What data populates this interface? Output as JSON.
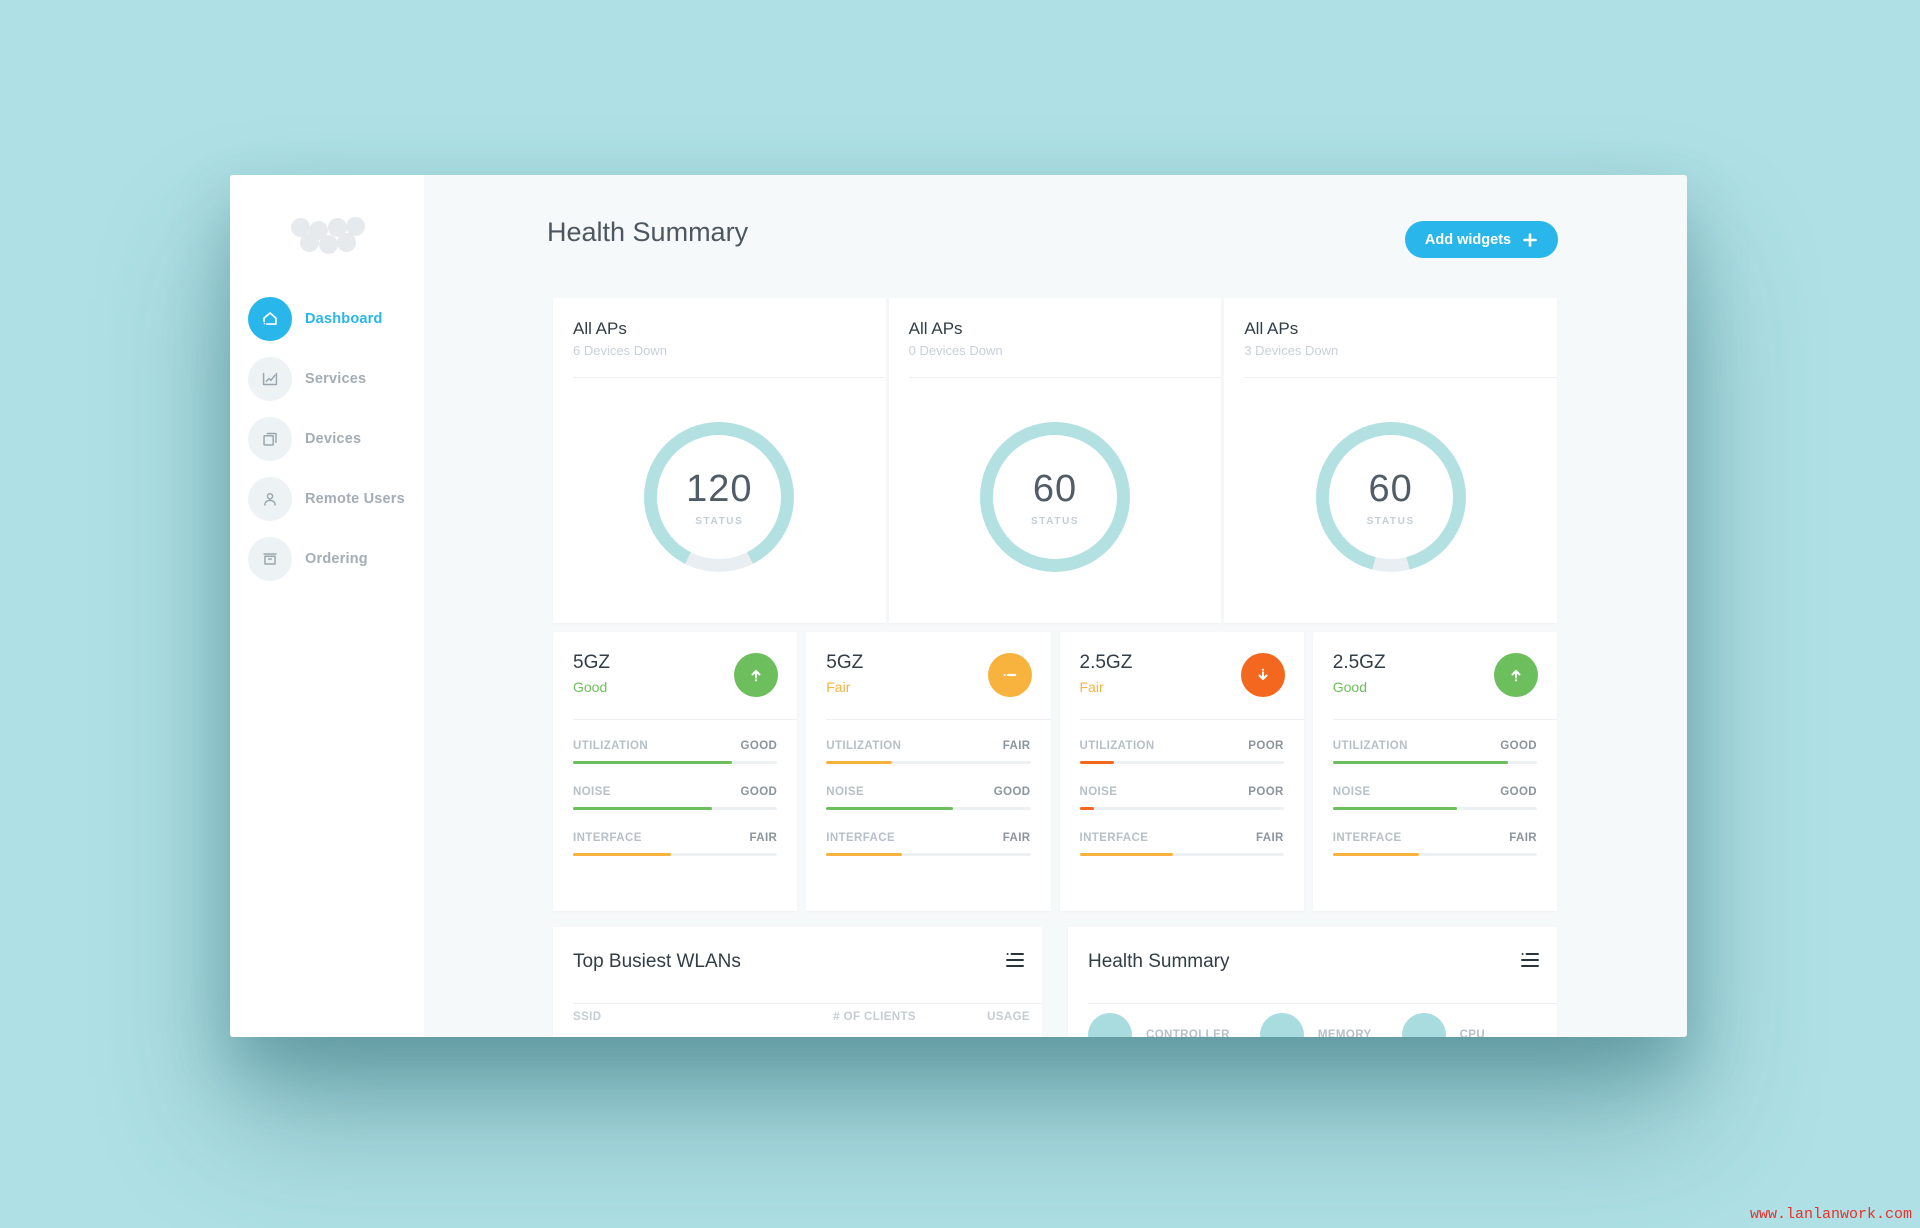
{
  "colors": {
    "background": "#aee0e5",
    "accent_blue": "#29b6ea",
    "ring_teal": "#b3e1e1",
    "ring_gap": "#e9eef2",
    "good_green": "#6dbf5d",
    "fair_amber": "#f7b33e",
    "poor_orange": "#f4671f"
  },
  "sidebar": {
    "items": [
      {
        "label": "Dashboard",
        "icon": "home-icon",
        "active": true
      },
      {
        "label": "Services",
        "icon": "chart-icon",
        "active": false
      },
      {
        "label": "Devices",
        "icon": "devices-icon",
        "active": false
      },
      {
        "label": "Remote Users",
        "icon": "user-icon",
        "active": false
      },
      {
        "label": "Ordering",
        "icon": "ordering-icon",
        "active": false
      }
    ]
  },
  "header": {
    "title": "Health Summary",
    "add_widgets_label": "Add widgets"
  },
  "ap_panels": [
    {
      "title": "All APs",
      "subtitle": "6 Devices Down",
      "value": "120",
      "value_label": "STATUS",
      "ring_fill_pct": 85
    },
    {
      "title": "All APs",
      "subtitle": "0 Devices Down",
      "value": "60",
      "value_label": "STATUS",
      "ring_fill_pct": 100
    },
    {
      "title": "All APs",
      "subtitle": "3 Devices Down",
      "value": "60",
      "value_label": "STATUS",
      "ring_fill_pct": 92
    }
  ],
  "band_cards": [
    {
      "band": "5GZ",
      "status": "Good",
      "status_level": "good",
      "trend": "up",
      "metrics": [
        {
          "label": "UTILIZATION",
          "rating": "GOOD",
          "level": "good",
          "pct": 78
        },
        {
          "label": "NOISE",
          "rating": "GOOD",
          "level": "good",
          "pct": 68
        },
        {
          "label": "INTERFACE",
          "rating": "FAIR",
          "level": "fair",
          "pct": 48
        }
      ]
    },
    {
      "band": "5GZ",
      "status": "Fair",
      "status_level": "fair",
      "trend": "steady",
      "metrics": [
        {
          "label": "UTILIZATION",
          "rating": "FAIR",
          "level": "fair",
          "pct": 32
        },
        {
          "label": "NOISE",
          "rating": "GOOD",
          "level": "good",
          "pct": 62
        },
        {
          "label": "INTERFACE",
          "rating": "FAIR",
          "level": "fair",
          "pct": 37
        }
      ]
    },
    {
      "band": "2.5GZ",
      "status": "Fair",
      "status_level": "fair",
      "trend": "down",
      "metrics": [
        {
          "label": "UTILIZATION",
          "rating": "POOR",
          "level": "poor",
          "pct": 17
        },
        {
          "label": "NOISE",
          "rating": "POOR",
          "level": "poor",
          "pct": 7
        },
        {
          "label": "INTERFACE",
          "rating": "FAIR",
          "level": "fair",
          "pct": 46
        }
      ]
    },
    {
      "band": "2.5GZ",
      "status": "Good",
      "status_level": "good",
      "trend": "up",
      "metrics": [
        {
          "label": "UTILIZATION",
          "rating": "GOOD",
          "level": "good",
          "pct": 86
        },
        {
          "label": "NOISE",
          "rating": "GOOD",
          "level": "good",
          "pct": 61
        },
        {
          "label": "INTERFACE",
          "rating": "FAIR",
          "level": "fair",
          "pct": 42
        }
      ]
    }
  ],
  "wlans_card": {
    "title": "Top Busiest WLANs",
    "columns": [
      "SSID",
      "# OF CLIENTS",
      "USAGE"
    ]
  },
  "health_card": {
    "title": "Health Summary",
    "items": [
      "CONTROLLER",
      "MEMORY",
      "CPU"
    ]
  },
  "watermark": "www.lanlanwork.com"
}
